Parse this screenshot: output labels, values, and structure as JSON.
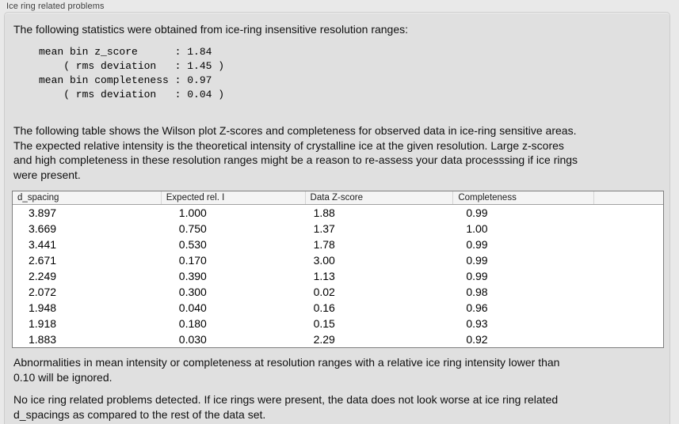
{
  "panel": {
    "title": "Ice ring related problems",
    "intro": "The following statistics were obtained from ice-ring insensitive resolution ranges:",
    "stats": "mean bin z_score      : 1.84\n    ( rms deviation   : 1.45 )\nmean bin completeness : 0.97\n    ( rms deviation   : 0.04 )",
    "description": "The following table shows the Wilson plot Z-scores and completeness for observed data in ice-ring sensitive areas.\nThe expected relative intensity is the theoretical intensity of crystalline ice at the given resolution. Large z-scores\nand high completeness in these resolution ranges might be a reason to re-assess your data processsing if ice rings\nwere present.",
    "note_threshold": "Abnormalities in mean intensity or completeness at resolution ranges with a relative ice ring intensity lower than\n0.10 will be ignored.",
    "note_conclusion": "No ice ring related problems detected. If ice rings were present, the data does not look worse at ice ring related\nd_spacings as compared to the rest of the data set."
  },
  "table": {
    "columns": [
      "d_spacing",
      "Expected rel. I",
      "Data Z-score",
      "Completeness",
      ""
    ],
    "rows": [
      [
        "3.897",
        "1.000",
        "1.88",
        "0.99"
      ],
      [
        "3.669",
        "0.750",
        "1.37",
        "1.00"
      ],
      [
        "3.441",
        "0.530",
        "1.78",
        "0.99"
      ],
      [
        "2.671",
        "0.170",
        "3.00",
        "0.99"
      ],
      [
        "2.249",
        "0.390",
        "1.13",
        "0.99"
      ],
      [
        "2.072",
        "0.300",
        "0.02",
        "0.98"
      ],
      [
        "1.948",
        "0.040",
        "0.16",
        "0.96"
      ],
      [
        "1.918",
        "0.180",
        "0.15",
        "0.93"
      ],
      [
        "1.883",
        "0.030",
        "2.29",
        "0.92"
      ]
    ]
  },
  "colors": {
    "page_background": "#e9e9e9",
    "panel_background": "#e0e0e0",
    "panel_border": "#cccccc",
    "table_border": "#7e7e7e",
    "table_header_background": "#f4f4f4",
    "text": "#101010"
  }
}
